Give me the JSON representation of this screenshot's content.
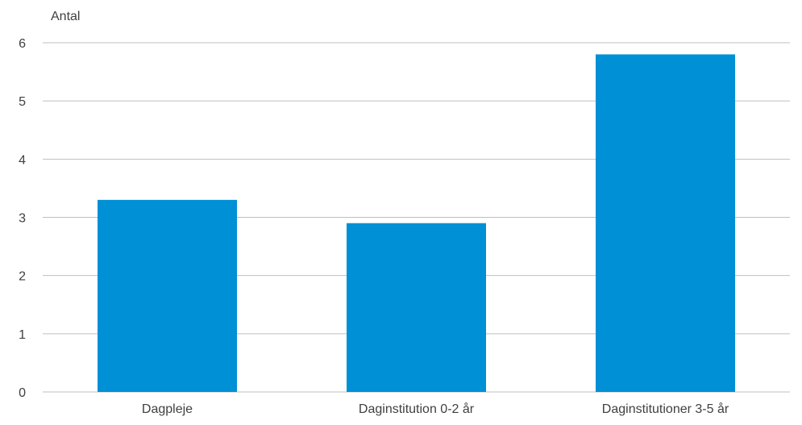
{
  "chart_data": {
    "type": "bar",
    "title": "",
    "xlabel": "",
    "ylabel": "Antal",
    "categories": [
      "Dagpleje",
      "Daginstitution 0-2 år",
      "Daginstitutioner 3-5 år"
    ],
    "series": [
      {
        "values": [
          3.3,
          2.9,
          5.8
        ]
      }
    ],
    "ylim": [
      0,
      6
    ],
    "yticks": [
      0,
      1,
      2,
      3,
      4,
      5,
      6
    ],
    "grid": true,
    "legend": "none",
    "colors": {
      "bar": "#0090D5",
      "grid": "#BFBFBF",
      "text": "#404040"
    }
  }
}
